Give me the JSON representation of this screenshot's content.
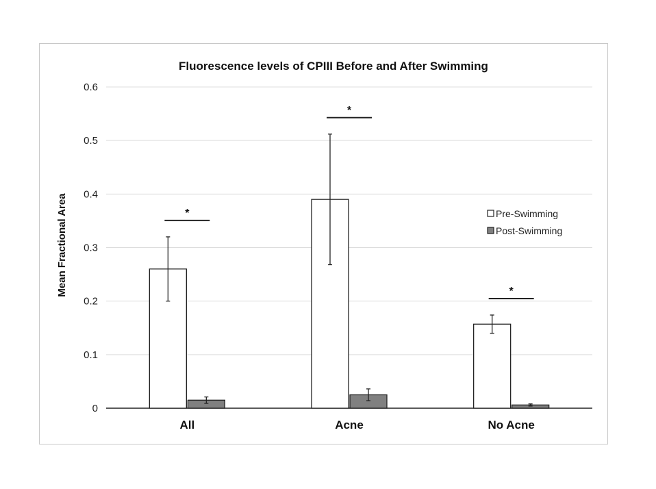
{
  "chart_data": {
    "type": "bar",
    "title": "Fluorescence levels of CPIII Before and After Swimming",
    "xlabel": "",
    "ylabel": "Mean Fractional Area",
    "categories": [
      "All",
      "Acne",
      "No Acne"
    ],
    "series": [
      {
        "name": "Pre-Swimming",
        "values": [
          0.26,
          0.39,
          0.157
        ],
        "errors": [
          0.06,
          0.122,
          0.017
        ],
        "color": "#ffffff"
      },
      {
        "name": "Post-Swimming",
        "values": [
          0.015,
          0.025,
          0.006
        ],
        "errors": [
          0.006,
          0.011,
          0.002
        ],
        "color": "#808080"
      }
    ],
    "significance": [
      "*",
      "*",
      "*"
    ],
    "ylim": [
      0,
      0.6
    ],
    "yticks": [
      0,
      0.1,
      0.2,
      0.3,
      0.4,
      0.5,
      0.6
    ],
    "ytick_labels": [
      "0",
      "0.1",
      "0.2",
      "0.3",
      "0.4",
      "0.5",
      "0.6"
    ],
    "grid": true,
    "legend_position": "right"
  }
}
